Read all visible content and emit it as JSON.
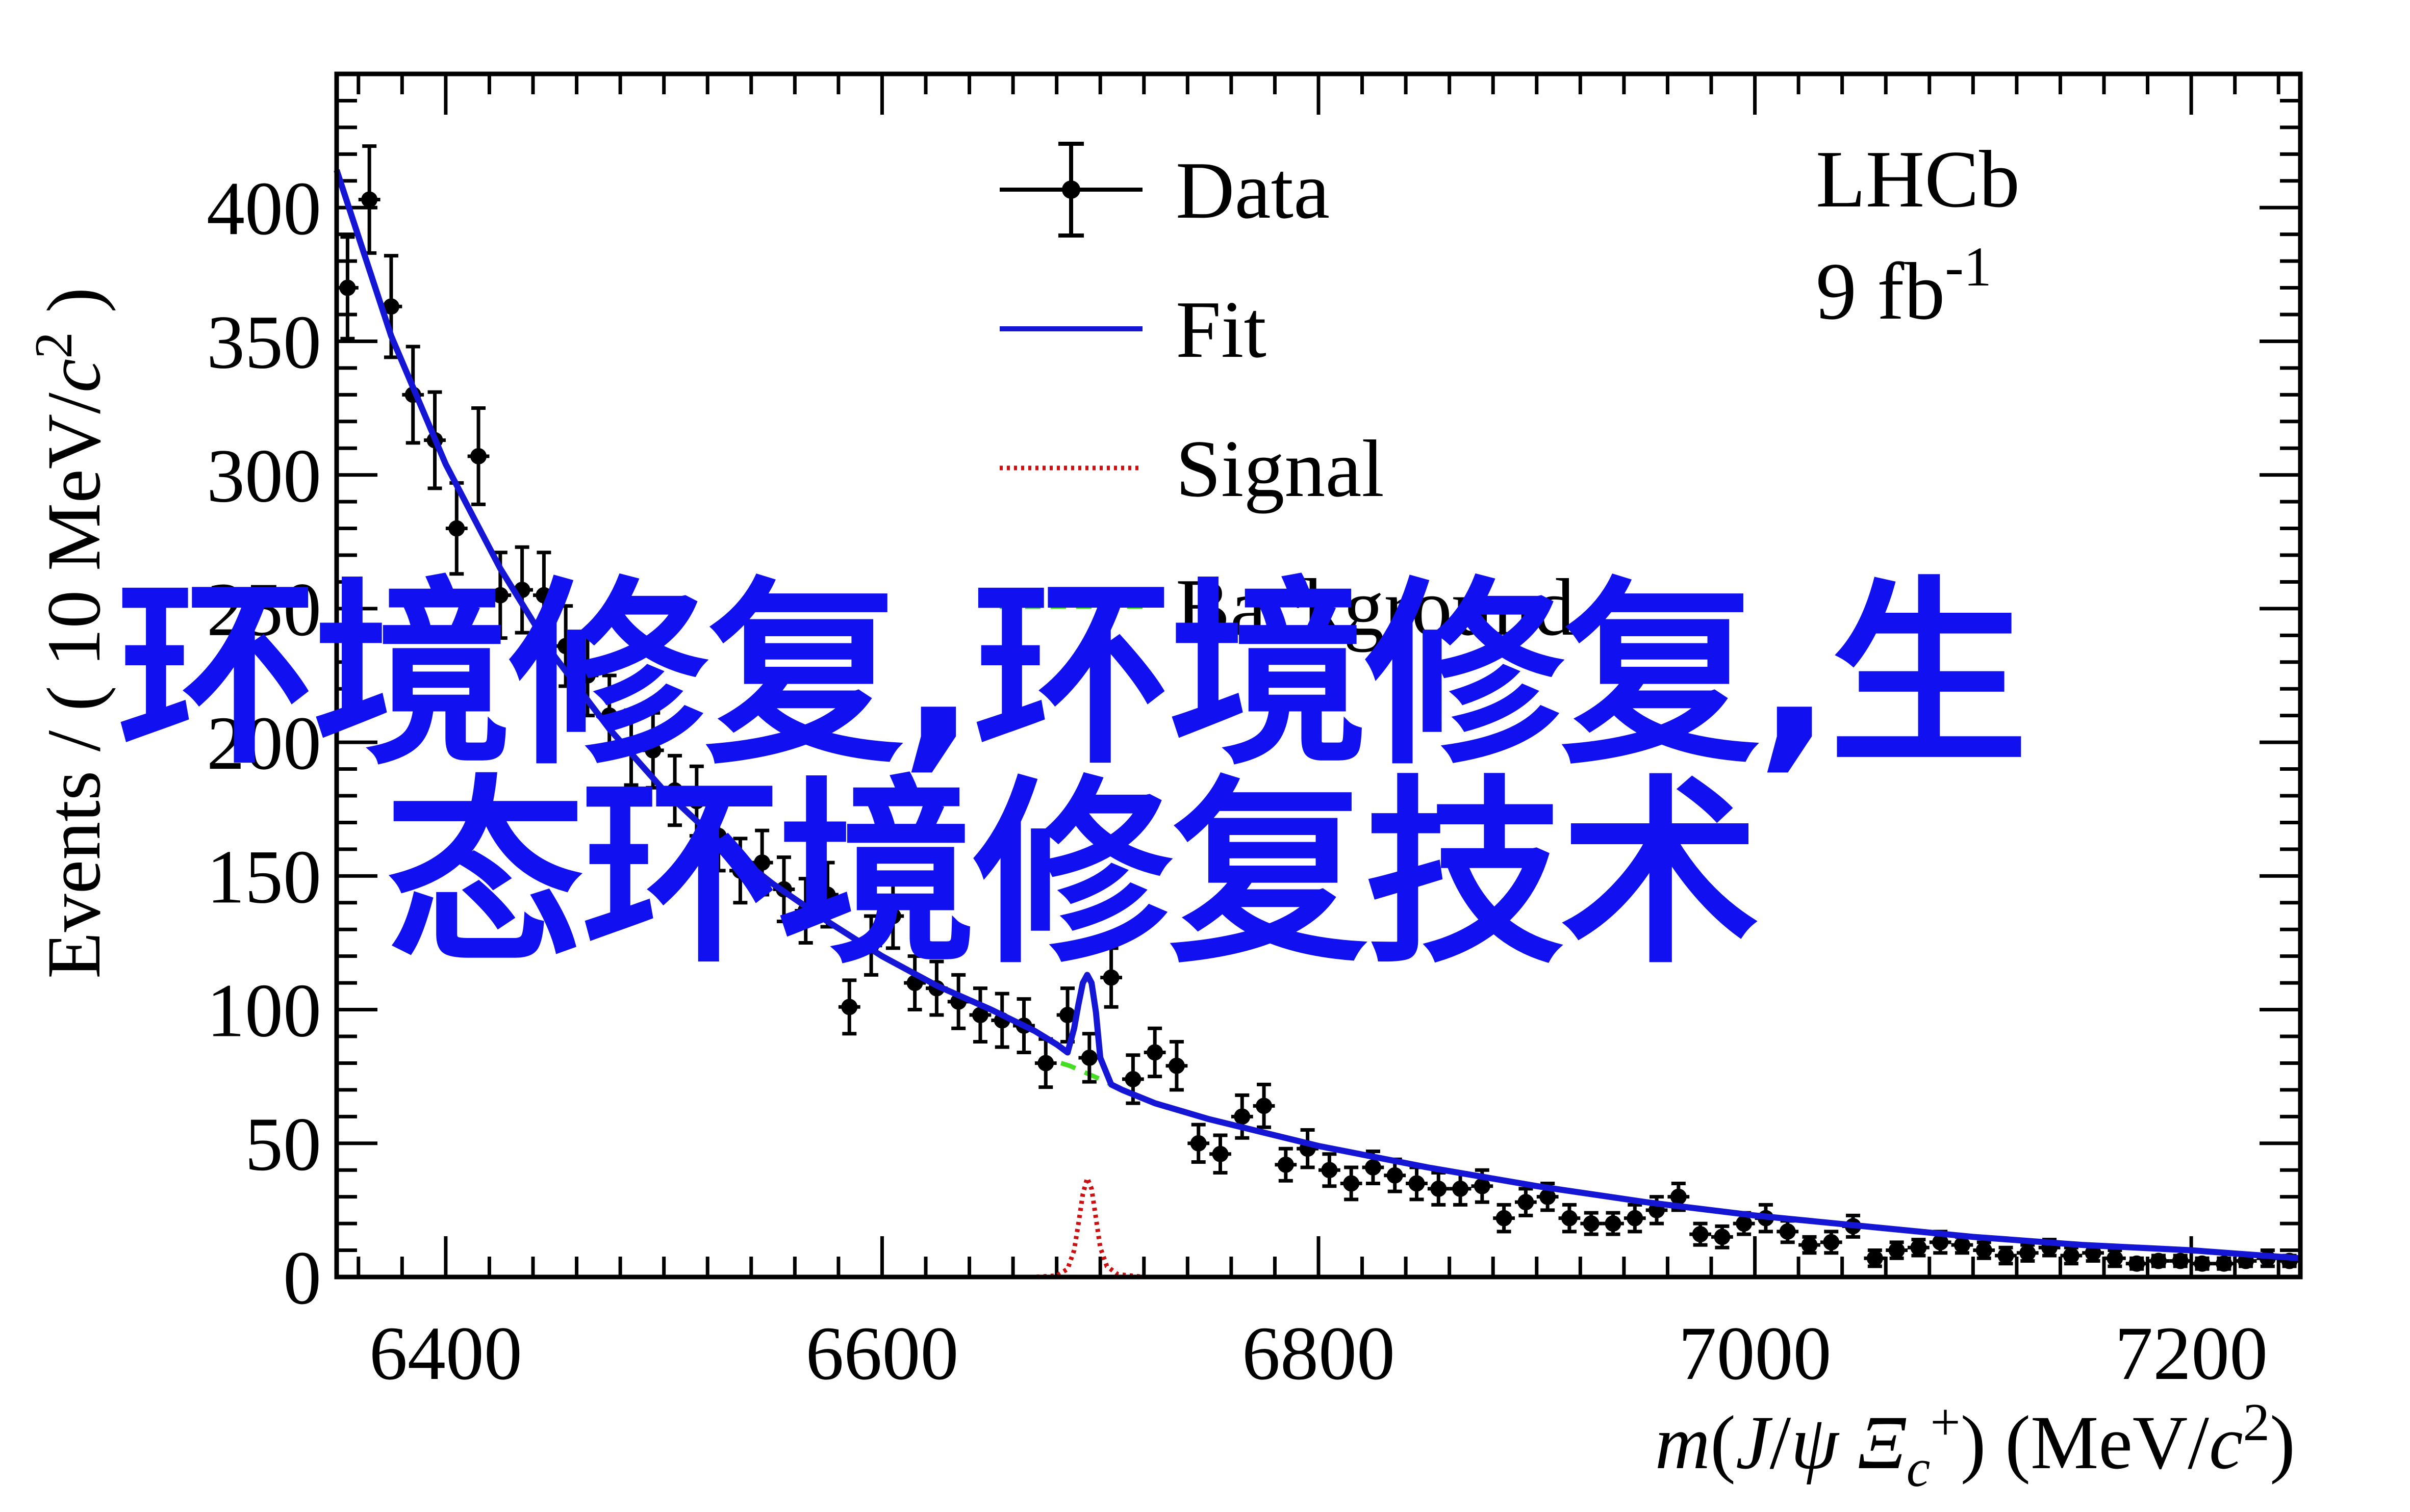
{
  "chart_data": {
    "type": "scatter",
    "experiment": "LHCb",
    "luminosity": "9 fb",
    "luminosity_exp": "-1",
    "ylabel": "Events / ( 10 MeV/c² )",
    "xlabel": "m(J/ψ Ξc⁺) (MeV/c²)",
    "xlim": [
      6350,
      7250
    ],
    "ylim": [
      0,
      450
    ],
    "x_ticks": [
      6400,
      6600,
      6800,
      7000,
      7200
    ],
    "y_ticks": [
      0,
      50,
      100,
      150,
      200,
      250,
      300,
      350,
      400
    ],
    "grid": false,
    "legend_position": "top-center",
    "legend": [
      {
        "name": "Data",
        "style": "marker-errorbar",
        "color": "#000000"
      },
      {
        "name": "Fit",
        "style": "solid",
        "color": "#1515d6"
      },
      {
        "name": "Signal",
        "style": "dotted",
        "color": "#cc1010"
      },
      {
        "name": "Background",
        "style": "dashed",
        "color": "#44dd22"
      }
    ],
    "series": [
      {
        "name": "Data",
        "x": [
          6355,
          6365,
          6375,
          6385,
          6395,
          6405,
          6415,
          6425,
          6435,
          6445,
          6455,
          6465,
          6475,
          6485,
          6495,
          6505,
          6515,
          6525,
          6535,
          6545,
          6555,
          6565,
          6575,
          6585,
          6595,
          6605,
          6615,
          6625,
          6635,
          6645,
          6655,
          6665,
          6675,
          6685,
          6695,
          6705,
          6715,
          6725,
          6735,
          6745,
          6755,
          6765,
          6775,
          6785,
          6795,
          6805,
          6815,
          6825,
          6835,
          6845,
          6855,
          6865,
          6875,
          6885,
          6895,
          6905,
          6915,
          6925,
          6935,
          6945,
          6955,
          6965,
          6975,
          6985,
          6995,
          7005,
          7015,
          7025,
          7035,
          7045,
          7055,
          7065,
          7075,
          7085,
          7095,
          7105,
          7115,
          7125,
          7135,
          7145,
          7155,
          7165,
          7175,
          7185,
          7195,
          7205,
          7215,
          7225,
          7235,
          7245
        ],
        "y": [
          370,
          403,
          363,
          330,
          313,
          280,
          307,
          255,
          257,
          255,
          236,
          225,
          210,
          198,
          197,
          182,
          178,
          165,
          152,
          155,
          145,
          137,
          143,
          101,
          124,
          135,
          110,
          108,
          103,
          98,
          96,
          94,
          80,
          98,
          82,
          112,
          74,
          84,
          79,
          50,
          46,
          60,
          64,
          42,
          48,
          40,
          35,
          41,
          38,
          35,
          33,
          33,
          34,
          22,
          28,
          30,
          22,
          20,
          20,
          22,
          25,
          30,
          16,
          15,
          20,
          22,
          17,
          12,
          13,
          19,
          7,
          10,
          11,
          13,
          12,
          10,
          8,
          9,
          11,
          8,
          9,
          7,
          5,
          6,
          6,
          5,
          5,
          6,
          7,
          6
        ],
        "yerr": [
          19,
          20,
          19,
          18,
          18,
          17,
          18,
          16,
          16,
          16,
          15,
          15,
          15,
          14,
          14,
          13,
          13,
          13,
          12,
          12,
          12,
          12,
          12,
          10,
          11,
          12,
          10,
          10,
          10,
          10,
          10,
          10,
          9,
          10,
          9,
          11,
          9,
          9,
          9,
          7,
          7,
          8,
          8,
          6,
          7,
          6,
          6,
          6,
          6,
          6,
          6,
          6,
          6,
          5,
          5,
          5,
          5,
          4,
          4,
          5,
          5,
          5,
          4,
          4,
          4,
          5,
          4,
          3,
          4,
          4,
          3,
          3,
          3,
          4,
          3,
          3,
          3,
          3,
          3,
          3,
          3,
          3,
          2,
          2,
          2,
          2,
          2,
          2,
          3,
          2
        ]
      },
      {
        "name": "Fit",
        "x": [
          6350,
          6375,
          6400,
          6425,
          6450,
          6475,
          6500,
          6525,
          6550,
          6575,
          6600,
          6625,
          6650,
          6670,
          6680,
          6685,
          6688,
          6690,
          6692,
          6694,
          6696,
          6698,
          6700,
          6705,
          6710,
          6725,
          6750,
          6775,
          6800,
          6850,
          6900,
          6950,
          7000,
          7050,
          7100,
          7150,
          7200,
          7250
        ],
        "y": [
          414,
          352,
          304,
          265,
          232,
          205,
          182,
          163,
          147,
          133,
          120,
          109,
          100,
          92,
          87,
          84,
          93,
          102,
          110,
          113,
          110,
          99,
          82,
          72,
          70,
          65,
          59,
          54,
          49,
          41,
          34,
          28,
          23,
          19,
          15,
          12,
          10,
          7
        ]
      },
      {
        "name": "Signal",
        "x": [
          6350,
          6670,
          6680,
          6685,
          6688,
          6690,
          6692,
          6694,
          6696,
          6698,
          6700,
          6703,
          6708,
          6720,
          7250
        ],
        "y": [
          0,
          0,
          0.5,
          3,
          10,
          20,
          31,
          37,
          33,
          22,
          11,
          4,
          1,
          0,
          0
        ]
      },
      {
        "name": "Background",
        "x": [
          6682,
          6686,
          6700,
          6705
        ],
        "y": [
          80,
          79,
          74,
          72
        ]
      }
    ]
  },
  "overlay_text": {
    "line1": "环境修复,环境修复,生",
    "line2": "态环境修复技术"
  }
}
